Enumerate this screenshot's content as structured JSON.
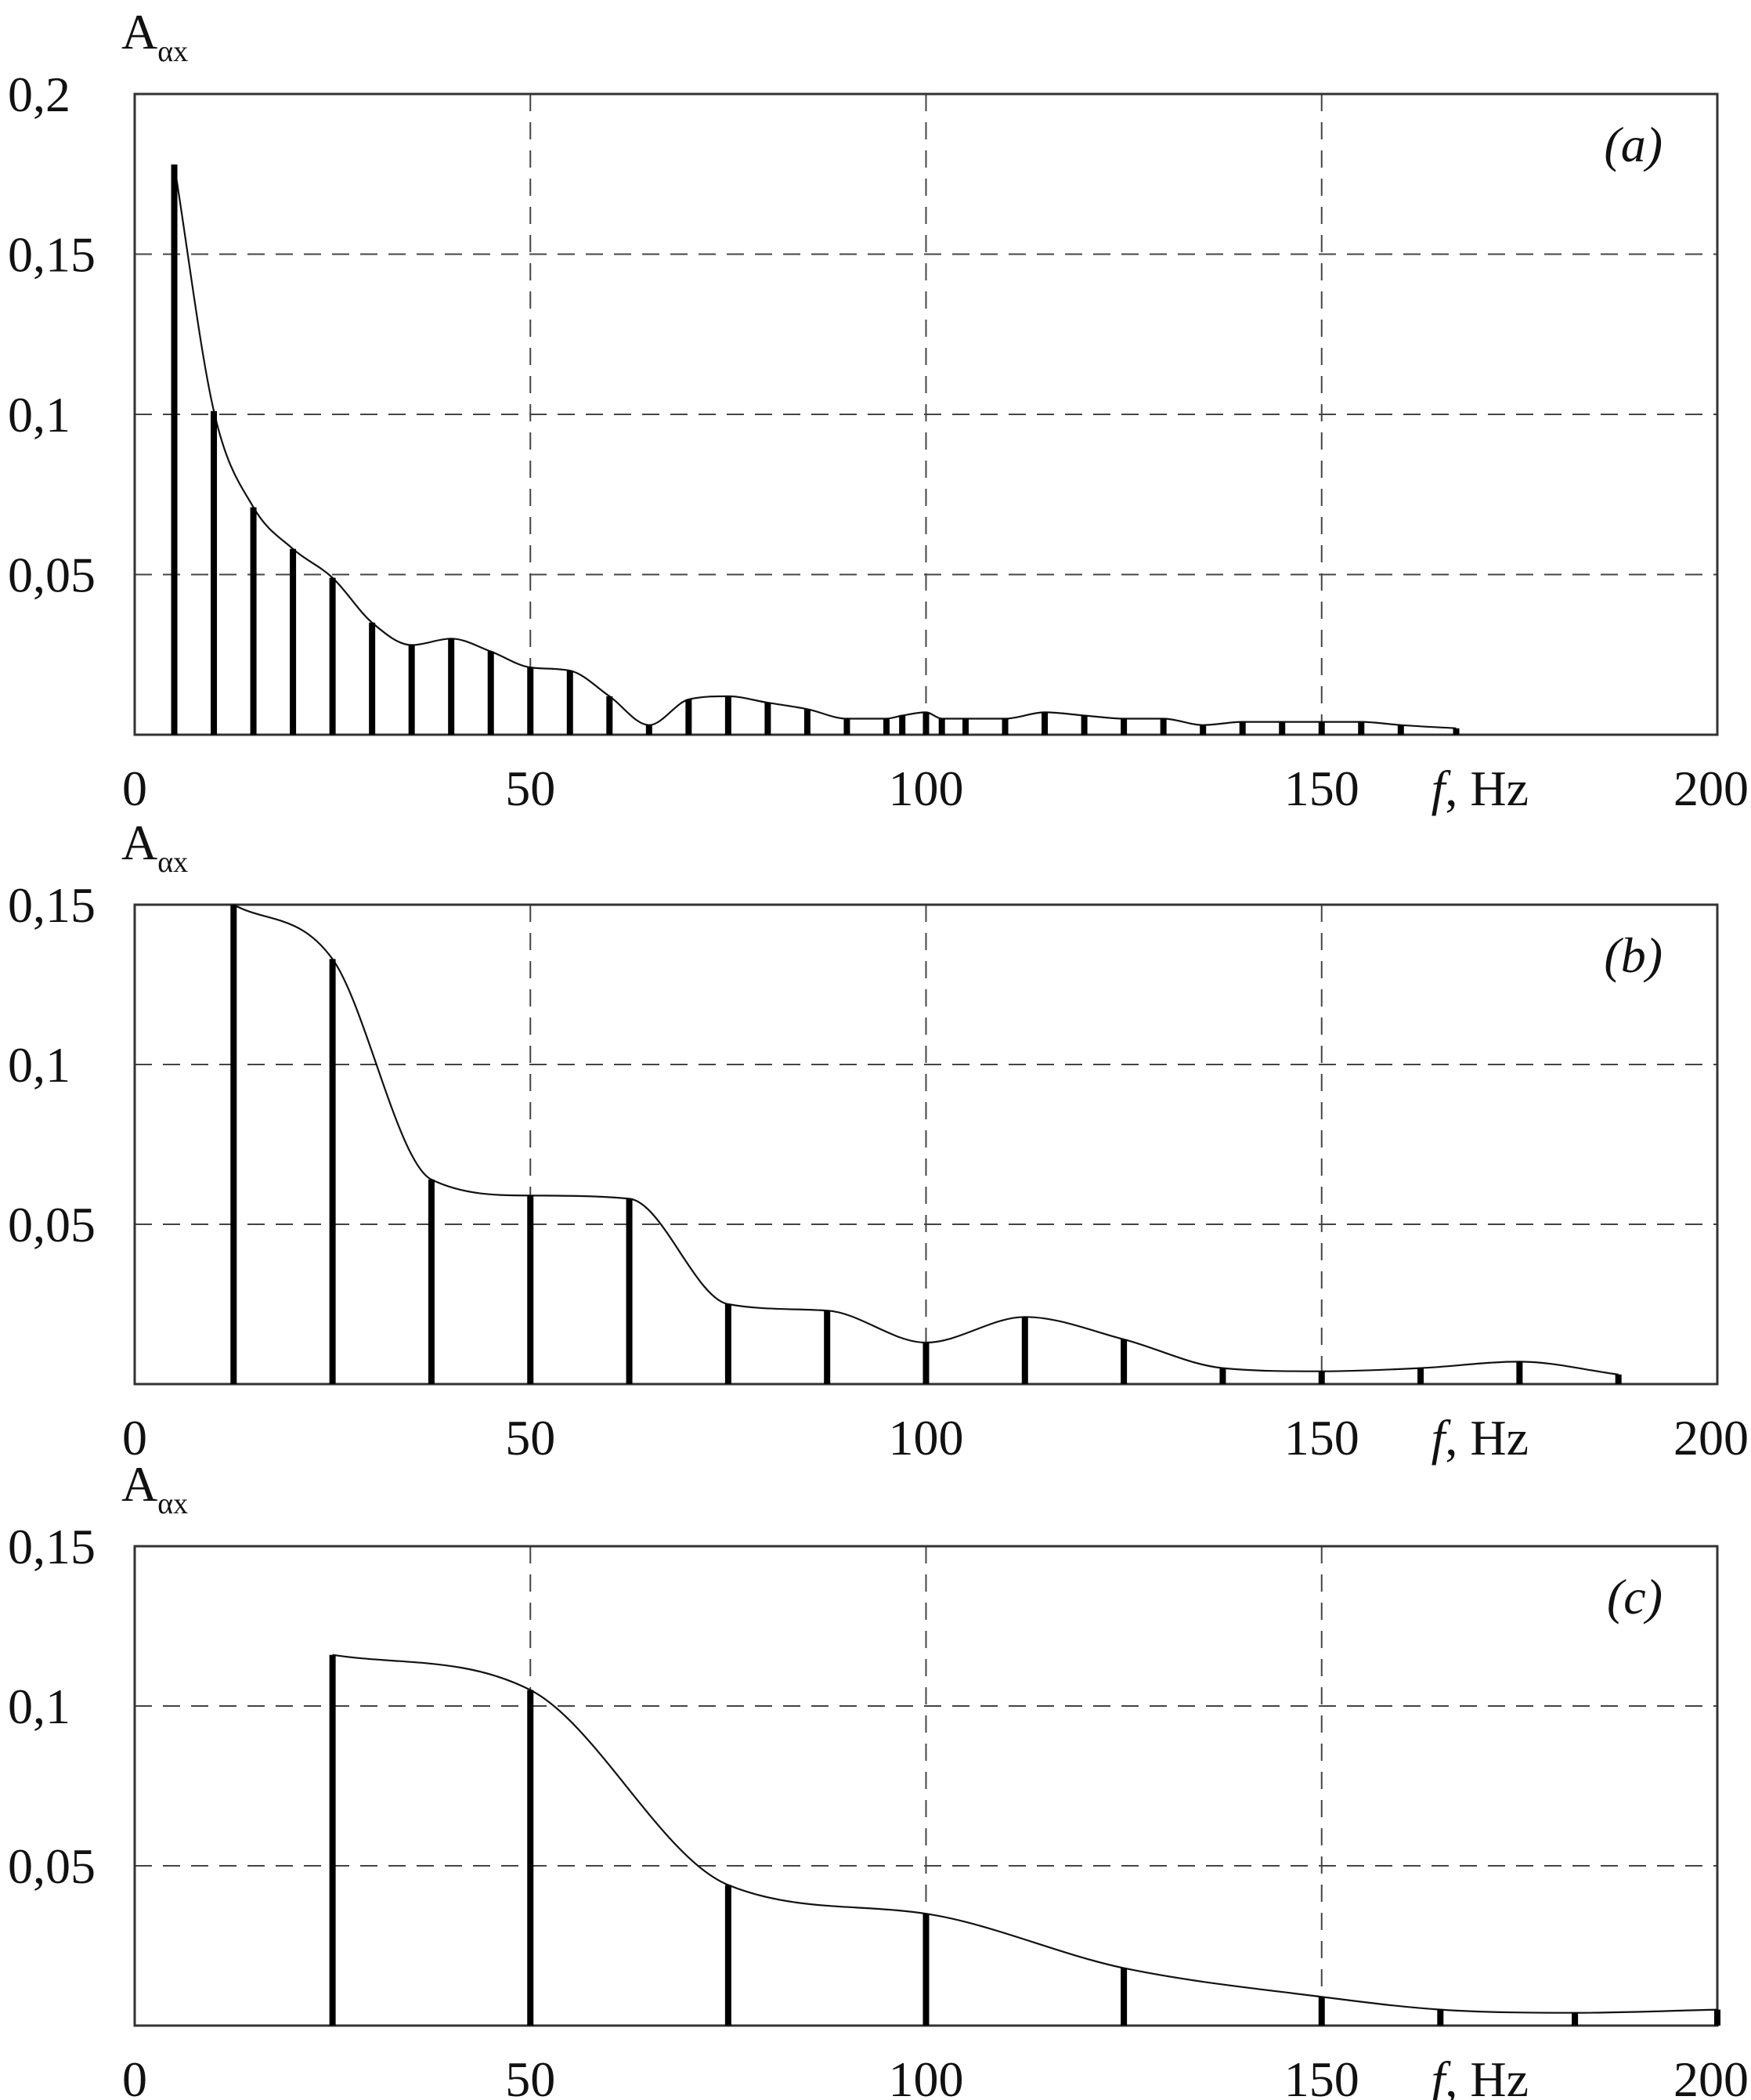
{
  "chart_data": [
    {
      "type": "bar",
      "panel_label": "(a)",
      "ylabel": "A",
      "ylabel_sub": "αx",
      "xlabel_f": "f",
      "xlabel_unit": ", Hz",
      "xlim": [
        0,
        200
      ],
      "ylim": [
        0,
        0.2
      ],
      "x_ticks": [
        "0",
        "50",
        "100",
        "150",
        "200"
      ],
      "x_tick_values": [
        0,
        50,
        100,
        150,
        200
      ],
      "y_ticks": [
        "0,2",
        "0,15",
        "0,1",
        "0,05"
      ],
      "y_tick_values": [
        0.2,
        0.15,
        0.1,
        0.05
      ],
      "grid": true,
      "x": [
        5,
        10,
        15,
        20,
        25,
        30,
        35,
        40,
        45,
        50,
        55,
        60,
        65,
        70,
        75,
        80,
        85,
        90,
        95,
        97,
        100,
        102,
        105,
        110,
        115,
        120,
        125,
        130,
        135,
        140,
        145,
        150,
        155,
        160,
        167
      ],
      "values": [
        0.178,
        0.101,
        0.071,
        0.058,
        0.049,
        0.035,
        0.028,
        0.03,
        0.026,
        0.021,
        0.02,
        0.012,
        0.003,
        0.011,
        0.012,
        0.01,
        0.008,
        0.005,
        0.005,
        0.006,
        0.007,
        0.005,
        0.005,
        0.005,
        0.007,
        0.006,
        0.005,
        0.005,
        0.003,
        0.004,
        0.004,
        0.004,
        0.004,
        0.003,
        0.002
      ]
    },
    {
      "type": "bar",
      "panel_label": "(b)",
      "ylabel": "A",
      "ylabel_sub": "αx",
      "xlabel_f": "f",
      "xlabel_unit": ", Hz",
      "xlim": [
        0,
        200
      ],
      "ylim": [
        0,
        0.15
      ],
      "x_ticks": [
        "0",
        "50",
        "100",
        "150",
        "200"
      ],
      "x_tick_values": [
        0,
        50,
        100,
        150,
        200
      ],
      "y_ticks": [
        "0,15",
        "0,1",
        "0,05"
      ],
      "y_tick_values": [
        0.15,
        0.1,
        0.05
      ],
      "grid": true,
      "x": [
        12.5,
        25,
        37.5,
        50,
        62.5,
        75,
        87.5,
        100,
        112.5,
        125,
        137.5,
        150,
        162.5,
        175,
        187.5
      ],
      "values": [
        0.15,
        0.133,
        0.064,
        0.059,
        0.058,
        0.025,
        0.023,
        0.013,
        0.021,
        0.014,
        0.005,
        0.004,
        0.005,
        0.007,
        0.003
      ]
    },
    {
      "type": "bar",
      "panel_label": "(c)",
      "ylabel": "A",
      "ylabel_sub": "αx",
      "xlabel_f": "f",
      "xlabel_unit": ", Hz",
      "xlim": [
        0,
        200
      ],
      "ylim": [
        0,
        0.15
      ],
      "x_ticks": [
        "0",
        "50",
        "100",
        "150",
        "200"
      ],
      "x_tick_values": [
        0,
        50,
        100,
        150,
        200
      ],
      "y_ticks": [
        "0,15",
        "0,1",
        "0,05"
      ],
      "y_tick_values": [
        0.15,
        0.1,
        0.05
      ],
      "grid": true,
      "x": [
        25,
        50,
        75,
        100,
        125,
        150,
        165,
        182,
        200
      ],
      "values": [
        0.116,
        0.105,
        0.044,
        0.035,
        0.018,
        0.009,
        0.005,
        0.004,
        0.005
      ]
    }
  ]
}
